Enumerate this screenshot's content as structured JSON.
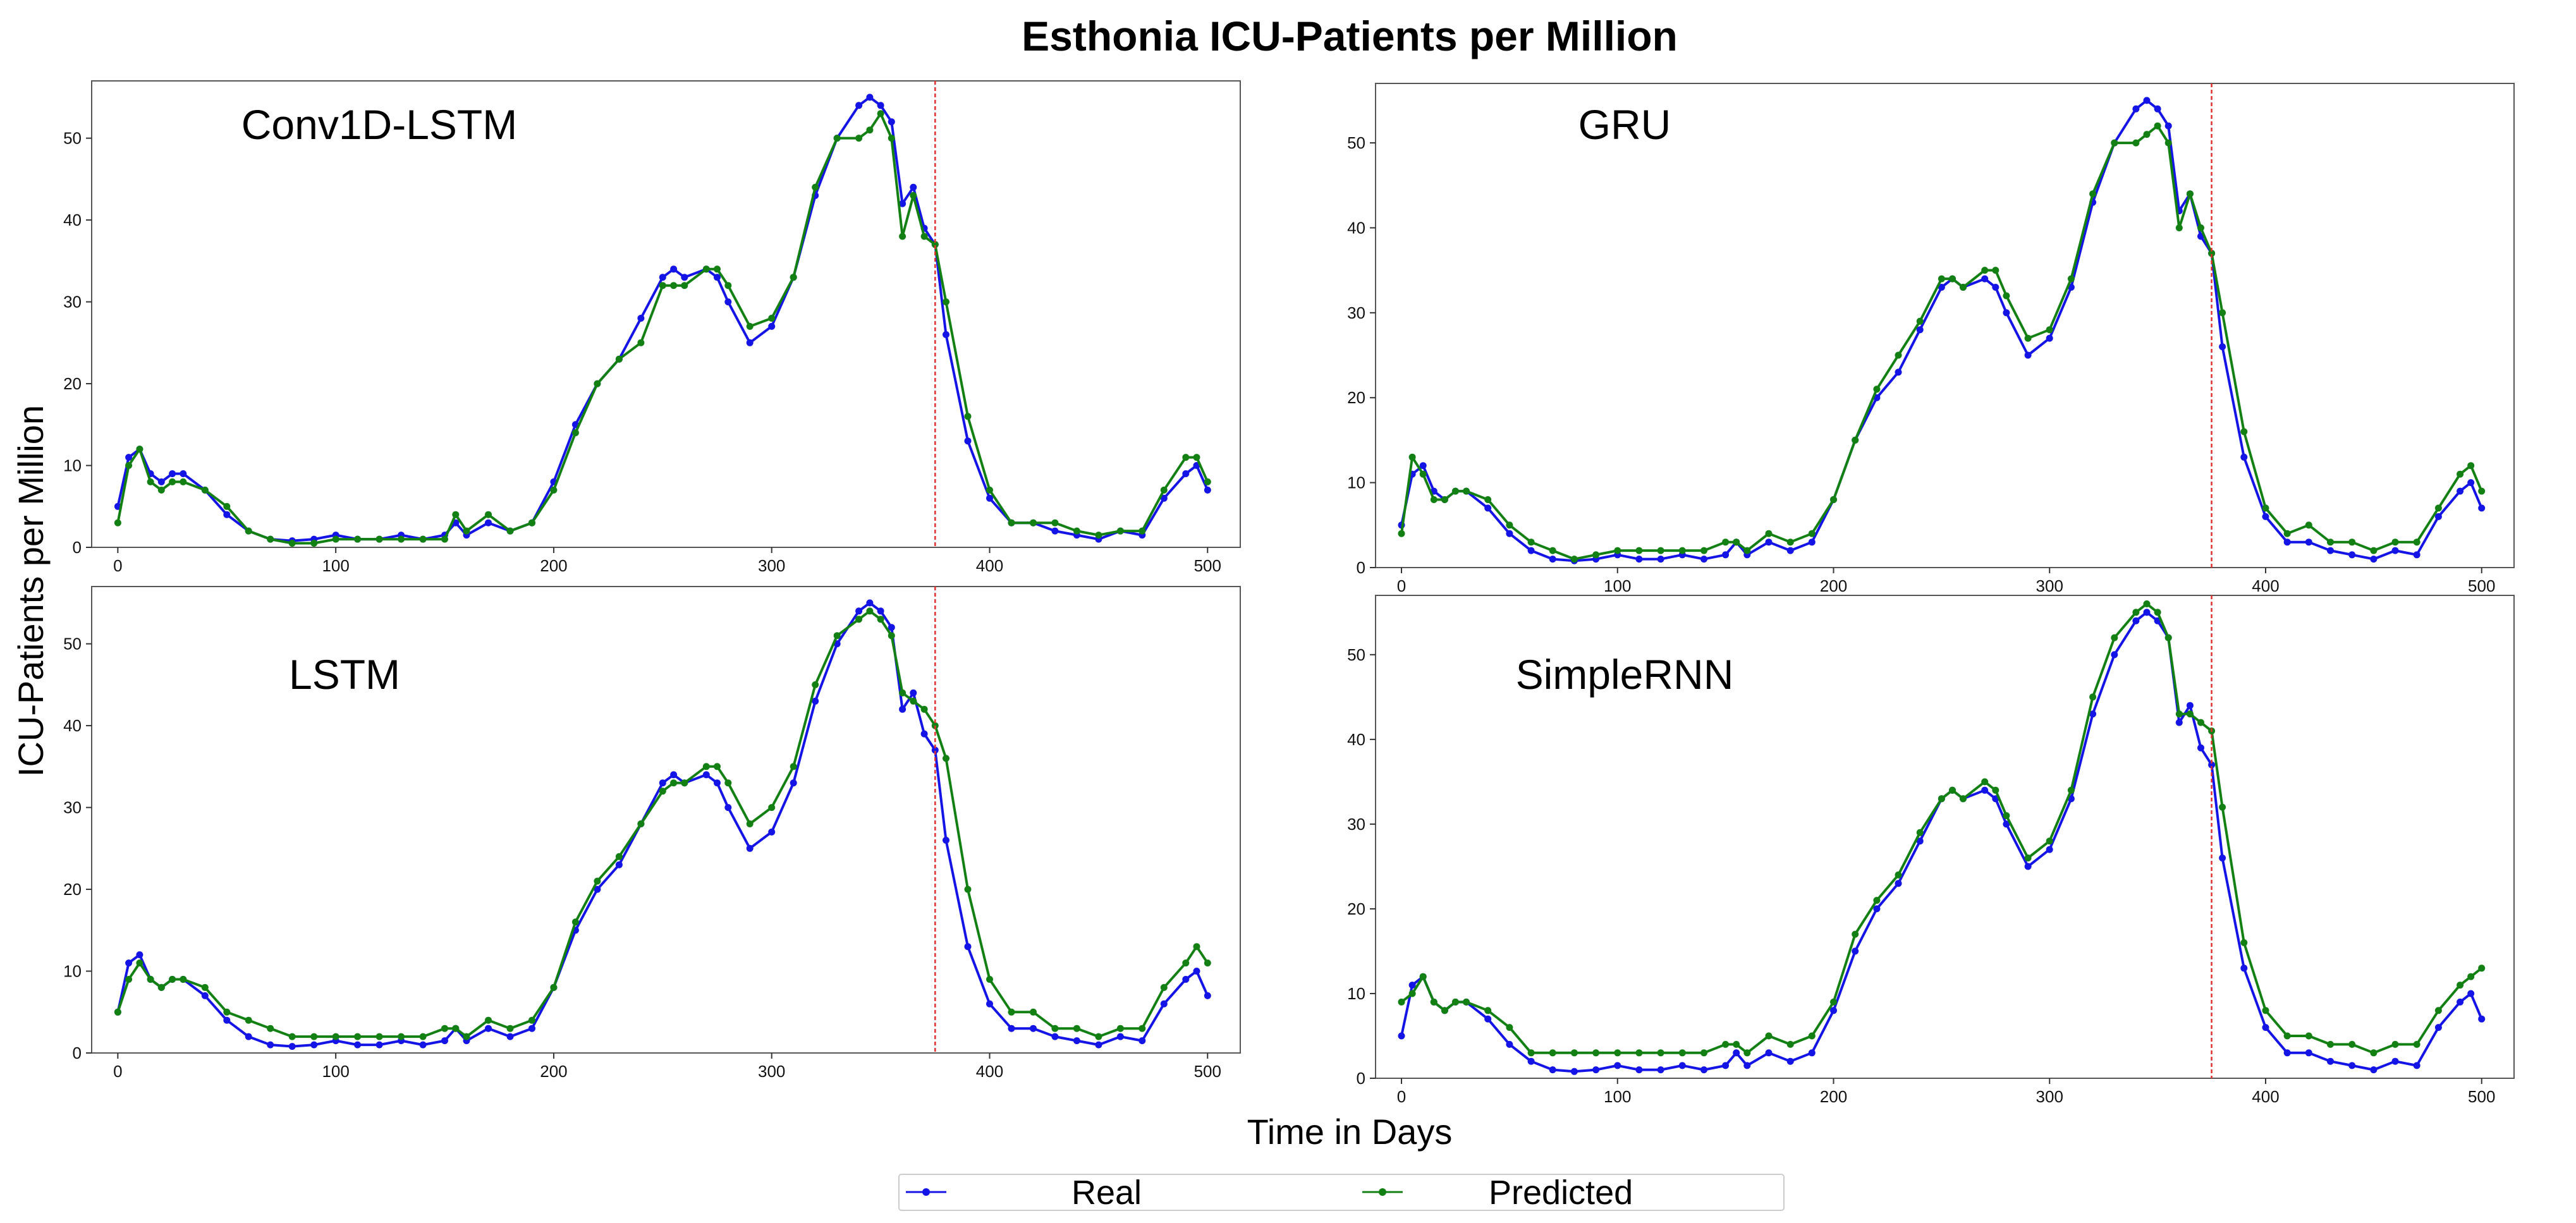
{
  "figure": {
    "title": "Esthonia ICU-Patients per Million",
    "xlabel": "Time in Days",
    "ylabel": "ICU-Patients per Million",
    "legend": {
      "real_label": "Real",
      "predicted_label": "Predicted"
    },
    "colors": {
      "real": "#1414e6",
      "predicted": "#138013",
      "split_line": "#e0302e",
      "axes": "#555555"
    }
  },
  "chart_data": [
    {
      "type": "line",
      "title": "Conv1D-LSTM",
      "xlabel": "Time in Days",
      "ylabel": "ICU-Patients per Million",
      "xlim": [
        -12,
        515
      ],
      "ylim": [
        0,
        57
      ],
      "xticks": [
        0,
        100,
        200,
        300,
        400,
        500
      ],
      "yticks": [
        0,
        10,
        20,
        30,
        40,
        50
      ],
      "split_day": 375,
      "x": [
        0,
        5,
        10,
        15,
        20,
        25,
        30,
        40,
        50,
        60,
        70,
        80,
        90,
        100,
        110,
        120,
        130,
        140,
        150,
        155,
        160,
        170,
        180,
        190,
        200,
        210,
        220,
        230,
        240,
        250,
        255,
        260,
        270,
        275,
        280,
        290,
        300,
        310,
        320,
        330,
        340,
        345,
        350,
        355,
        360,
        365,
        370,
        375,
        380,
        390,
        400,
        410,
        420,
        430,
        440,
        450,
        460,
        470,
        480,
        490,
        495,
        500
      ],
      "series": [
        {
          "name": "Real",
          "values": [
            5,
            11,
            12,
            9,
            8,
            9,
            9,
            7,
            4,
            2,
            1,
            0.8,
            1,
            1.5,
            1,
            1,
            1.5,
            1,
            1.5,
            3,
            1.5,
            3,
            2,
            3,
            8,
            15,
            20,
            23,
            28,
            33,
            34,
            33,
            34,
            33,
            30,
            25,
            27,
            33,
            43,
            50,
            54,
            55,
            54,
            52,
            42,
            44,
            39,
            37,
            26,
            13,
            6,
            3,
            3,
            2,
            1.5,
            1,
            2,
            1.5,
            6,
            9,
            10,
            7
          ]
        },
        {
          "name": "Predicted",
          "values": [
            3,
            10,
            12,
            8,
            7,
            8,
            8,
            7,
            5,
            2,
            1,
            0.5,
            0.5,
            1,
            1,
            1,
            1,
            1,
            1,
            4,
            2,
            4,
            2,
            3,
            7,
            14,
            20,
            23,
            25,
            32,
            32,
            32,
            34,
            34,
            32,
            27,
            28,
            33,
            44,
            50,
            50,
            51,
            53,
            50,
            38,
            43,
            38,
            37,
            30,
            16,
            7,
            3,
            3,
            3,
            2,
            1.5,
            2,
            2,
            7,
            11,
            11,
            8
          ]
        }
      ]
    },
    {
      "type": "line",
      "title": "GRU",
      "xlabel": "Time in Days",
      "ylabel": "ICU-Patients per Million",
      "xlim": [
        -12,
        515
      ],
      "ylim": [
        0,
        57
      ],
      "xticks": [
        0,
        100,
        200,
        300,
        400,
        500
      ],
      "yticks": [
        0,
        10,
        20,
        30,
        40,
        50
      ],
      "split_day": 375,
      "x": [
        0,
        5,
        10,
        15,
        20,
        25,
        30,
        40,
        50,
        60,
        70,
        80,
        90,
        100,
        110,
        120,
        130,
        140,
        150,
        155,
        160,
        170,
        180,
        190,
        200,
        210,
        220,
        230,
        240,
        250,
        255,
        260,
        270,
        275,
        280,
        290,
        300,
        310,
        320,
        330,
        340,
        345,
        350,
        355,
        360,
        365,
        370,
        375,
        380,
        390,
        400,
        410,
        420,
        430,
        440,
        450,
        460,
        470,
        480,
        490,
        495,
        500
      ],
      "series": [
        {
          "name": "Real",
          "values": [
            5,
            11,
            12,
            9,
            8,
            9,
            9,
            7,
            4,
            2,
            1,
            0.8,
            1,
            1.5,
            1,
            1,
            1.5,
            1,
            1.5,
            3,
            1.5,
            3,
            2,
            3,
            8,
            15,
            20,
            23,
            28,
            33,
            34,
            33,
            34,
            33,
            30,
            25,
            27,
            33,
            43,
            50,
            54,
            55,
            54,
            52,
            42,
            44,
            39,
            37,
            26,
            13,
            6,
            3,
            3,
            2,
            1.5,
            1,
            2,
            1.5,
            6,
            9,
            10,
            7
          ]
        },
        {
          "name": "Predicted",
          "values": [
            4,
            13,
            11,
            8,
            8,
            9,
            9,
            8,
            5,
            3,
            2,
            1,
            1.5,
            2,
            2,
            2,
            2,
            2,
            3,
            3,
            2,
            4,
            3,
            4,
            8,
            15,
            21,
            25,
            29,
            34,
            34,
            33,
            35,
            35,
            32,
            27,
            28,
            34,
            44,
            50,
            50,
            51,
            52,
            50,
            40,
            44,
            40,
            37,
            30,
            16,
            7,
            4,
            5,
            3,
            3,
            2,
            3,
            3,
            7,
            11,
            12,
            9
          ]
        }
      ]
    },
    {
      "type": "line",
      "title": "LSTM",
      "xlabel": "Time in Days",
      "ylabel": "ICU-Patients per Million",
      "xlim": [
        -12,
        515
      ],
      "ylim": [
        0,
        57
      ],
      "xticks": [
        0,
        100,
        200,
        300,
        400,
        500
      ],
      "yticks": [
        0,
        10,
        20,
        30,
        40,
        50
      ],
      "split_day": 375,
      "x": [
        0,
        5,
        10,
        15,
        20,
        25,
        30,
        40,
        50,
        60,
        70,
        80,
        90,
        100,
        110,
        120,
        130,
        140,
        150,
        155,
        160,
        170,
        180,
        190,
        200,
        210,
        220,
        230,
        240,
        250,
        255,
        260,
        270,
        275,
        280,
        290,
        300,
        310,
        320,
        330,
        340,
        345,
        350,
        355,
        360,
        365,
        370,
        375,
        380,
        390,
        400,
        410,
        420,
        430,
        440,
        450,
        460,
        470,
        480,
        490,
        495,
        500
      ],
      "series": [
        {
          "name": "Real",
          "values": [
            5,
            11,
            12,
            9,
            8,
            9,
            9,
            7,
            4,
            2,
            1,
            0.8,
            1,
            1.5,
            1,
            1,
            1.5,
            1,
            1.5,
            3,
            1.5,
            3,
            2,
            3,
            8,
            15,
            20,
            23,
            28,
            33,
            34,
            33,
            34,
            33,
            30,
            25,
            27,
            33,
            43,
            50,
            54,
            55,
            54,
            52,
            42,
            44,
            39,
            37,
            26,
            13,
            6,
            3,
            3,
            2,
            1.5,
            1,
            2,
            1.5,
            6,
            9,
            10,
            7
          ]
        },
        {
          "name": "Predicted",
          "values": [
            5,
            9,
            11,
            9,
            8,
            9,
            9,
            8,
            5,
            4,
            3,
            2,
            2,
            2,
            2,
            2,
            2,
            2,
            3,
            3,
            2,
            4,
            3,
            4,
            8,
            16,
            21,
            24,
            28,
            32,
            33,
            33,
            35,
            35,
            33,
            28,
            30,
            35,
            45,
            51,
            53,
            54,
            53,
            51,
            44,
            43,
            42,
            40,
            36,
            20,
            9,
            5,
            5,
            3,
            3,
            2,
            3,
            3,
            8,
            11,
            13,
            11
          ]
        }
      ]
    },
    {
      "type": "line",
      "title": "SimpleRNN",
      "xlabel": "Time in Days",
      "ylabel": "ICU-Patients per Million",
      "xlim": [
        -12,
        515
      ],
      "ylim": [
        0,
        57
      ],
      "xticks": [
        0,
        100,
        200,
        300,
        400,
        500
      ],
      "yticks": [
        0,
        10,
        20,
        30,
        40,
        50
      ],
      "split_day": 375,
      "x": [
        0,
        5,
        10,
        15,
        20,
        25,
        30,
        40,
        50,
        60,
        70,
        80,
        90,
        100,
        110,
        120,
        130,
        140,
        150,
        155,
        160,
        170,
        180,
        190,
        200,
        210,
        220,
        230,
        240,
        250,
        255,
        260,
        270,
        275,
        280,
        290,
        300,
        310,
        320,
        330,
        340,
        345,
        350,
        355,
        360,
        365,
        370,
        375,
        380,
        390,
        400,
        410,
        420,
        430,
        440,
        450,
        460,
        470,
        480,
        490,
        495,
        500
      ],
      "series": [
        {
          "name": "Real",
          "values": [
            5,
            11,
            12,
            9,
            8,
            9,
            9,
            7,
            4,
            2,
            1,
            0.8,
            1,
            1.5,
            1,
            1,
            1.5,
            1,
            1.5,
            3,
            1.5,
            3,
            2,
            3,
            8,
            15,
            20,
            23,
            28,
            33,
            34,
            33,
            34,
            33,
            30,
            25,
            27,
            33,
            43,
            50,
            54,
            55,
            54,
            52,
            42,
            44,
            39,
            37,
            26,
            13,
            6,
            3,
            3,
            2,
            1.5,
            1,
            2,
            1.5,
            6,
            9,
            10,
            7
          ]
        },
        {
          "name": "Predicted",
          "values": [
            9,
            10,
            12,
            9,
            8,
            9,
            9,
            8,
            6,
            3,
            3,
            3,
            3,
            3,
            3,
            3,
            3,
            3,
            4,
            4,
            3,
            5,
            4,
            5,
            9,
            17,
            21,
            24,
            29,
            33,
            34,
            33,
            35,
            34,
            31,
            26,
            28,
            34,
            45,
            52,
            55,
            56,
            55,
            52,
            43,
            43,
            42,
            41,
            32,
            16,
            8,
            5,
            5,
            4,
            4,
            3,
            4,
            4,
            8,
            11,
            12,
            13
          ]
        }
      ]
    }
  ]
}
